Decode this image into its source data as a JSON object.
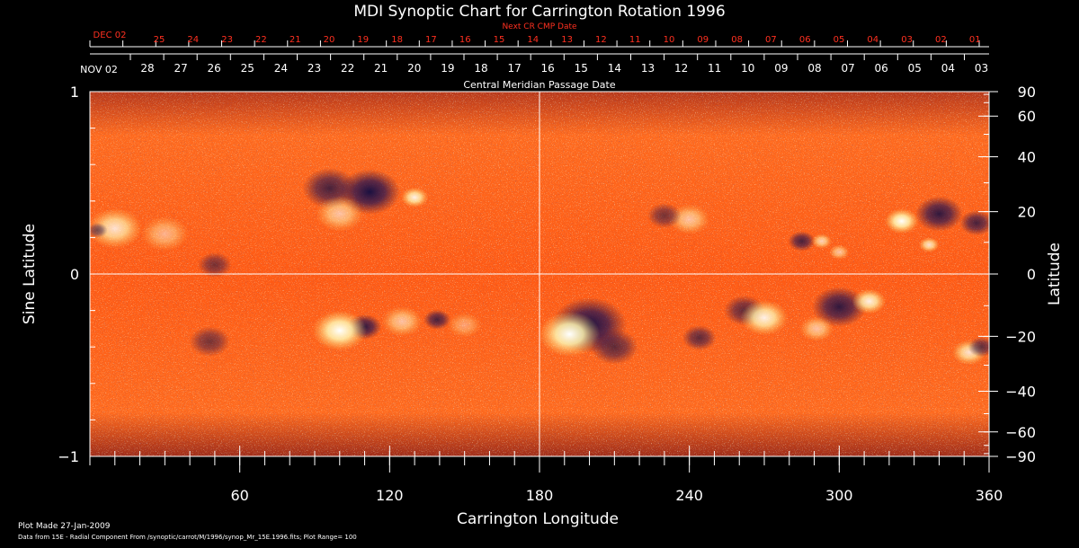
{
  "chart_data": {
    "type": "heatmap",
    "title": "MDI Synoptic Chart for Carrington Rotation 1996",
    "top_axis_label": "Next CR CMP Date",
    "top_axis_start_label": "DEC 02",
    "top_axis_ticks": [
      "25",
      "24",
      "23",
      "22",
      "21",
      "20",
      "19",
      "18",
      "17",
      "16",
      "15",
      "14",
      "13",
      "12",
      "11",
      "10",
      "09",
      "08",
      "07",
      "06",
      "05",
      "04",
      "03",
      "02",
      "01"
    ],
    "date_axis_label": "Central Meridian Passage Date",
    "date_axis_start_label": "NOV 02",
    "date_axis_ticks": [
      "28",
      "27",
      "26",
      "25",
      "24",
      "23",
      "22",
      "21",
      "20",
      "19",
      "18",
      "17",
      "16",
      "15",
      "14",
      "13",
      "12",
      "11",
      "10",
      "09",
      "08",
      "07",
      "06",
      "05",
      "04",
      "03"
    ],
    "xlabel": "Carrington Longitude",
    "xlim": [
      0,
      360
    ],
    "xticks": [
      60,
      120,
      180,
      240,
      300,
      360
    ],
    "ylabel": "Sine Latitude",
    "ylim": [
      -1,
      1
    ],
    "yticks": [
      {
        "value": 1,
        "label": "1"
      },
      {
        "value": 0,
        "label": "0"
      },
      {
        "value": -1,
        "label": "−1"
      }
    ],
    "right_ylabel": "Latitude",
    "right_yticks": [
      90,
      60,
      40,
      20,
      0,
      -20,
      -40,
      -60,
      -90
    ],
    "colors": {
      "background": "#ff5a14",
      "positive": "#ffffff",
      "negative": "#1a1040",
      "grid": "#ffffff"
    },
    "regions": [
      {
        "lon": 112,
        "sinlat": 0.45,
        "polarity": "negative",
        "strength": 1.0,
        "size": 18
      },
      {
        "lon": 96,
        "sinlat": 0.47,
        "polarity": "negative",
        "strength": 0.8,
        "size": 16
      },
      {
        "lon": 130,
        "sinlat": 0.42,
        "polarity": "positive",
        "strength": 0.9,
        "size": 8
      },
      {
        "lon": 100,
        "sinlat": 0.33,
        "polarity": "positive",
        "strength": 0.6,
        "size": 14
      },
      {
        "lon": 10,
        "sinlat": 0.25,
        "polarity": "positive",
        "strength": 0.8,
        "size": 16
      },
      {
        "lon": 30,
        "sinlat": 0.22,
        "polarity": "positive",
        "strength": 0.5,
        "size": 14
      },
      {
        "lon": 50,
        "sinlat": 0.05,
        "polarity": "negative",
        "strength": 0.6,
        "size": 10
      },
      {
        "lon": 110,
        "sinlat": -0.29,
        "polarity": "negative",
        "strength": 0.9,
        "size": 10
      },
      {
        "lon": 100,
        "sinlat": -0.31,
        "polarity": "positive",
        "strength": 1.0,
        "size": 16
      },
      {
        "lon": 125,
        "sinlat": -0.26,
        "polarity": "positive",
        "strength": 0.6,
        "size": 12
      },
      {
        "lon": 139,
        "sinlat": -0.25,
        "polarity": "negative",
        "strength": 0.8,
        "size": 8
      },
      {
        "lon": 150,
        "sinlat": -0.28,
        "polarity": "positive",
        "strength": 0.4,
        "size": 10
      },
      {
        "lon": 48,
        "sinlat": -0.37,
        "polarity": "negative",
        "strength": 0.6,
        "size": 12
      },
      {
        "lon": 200,
        "sinlat": -0.28,
        "polarity": "negative",
        "strength": 1.0,
        "size": 22
      },
      {
        "lon": 192,
        "sinlat": -0.33,
        "polarity": "positive",
        "strength": 1.0,
        "size": 18
      },
      {
        "lon": 210,
        "sinlat": -0.4,
        "polarity": "negative",
        "strength": 0.7,
        "size": 14
      },
      {
        "lon": 262,
        "sinlat": -0.2,
        "polarity": "negative",
        "strength": 0.7,
        "size": 12
      },
      {
        "lon": 270,
        "sinlat": -0.24,
        "polarity": "positive",
        "strength": 0.9,
        "size": 14
      },
      {
        "lon": 244,
        "sinlat": -0.35,
        "polarity": "negative",
        "strength": 0.7,
        "size": 10
      },
      {
        "lon": 300,
        "sinlat": -0.18,
        "polarity": "negative",
        "strength": 0.9,
        "size": 16
      },
      {
        "lon": 312,
        "sinlat": -0.15,
        "polarity": "positive",
        "strength": 0.9,
        "size": 10
      },
      {
        "lon": 291,
        "sinlat": -0.3,
        "polarity": "positive",
        "strength": 0.6,
        "size": 10
      },
      {
        "lon": 325,
        "sinlat": 0.29,
        "polarity": "positive",
        "strength": 1.0,
        "size": 10
      },
      {
        "lon": 340,
        "sinlat": 0.33,
        "polarity": "negative",
        "strength": 0.9,
        "size": 14
      },
      {
        "lon": 355,
        "sinlat": 0.28,
        "polarity": "negative",
        "strength": 0.8,
        "size": 10
      },
      {
        "lon": 336,
        "sinlat": 0.16,
        "polarity": "positive",
        "strength": 0.8,
        "size": 6
      },
      {
        "lon": 240,
        "sinlat": 0.3,
        "polarity": "positive",
        "strength": 0.6,
        "size": 12
      },
      {
        "lon": 230,
        "sinlat": 0.32,
        "polarity": "negative",
        "strength": 0.6,
        "size": 10
      },
      {
        "lon": 285,
        "sinlat": 0.18,
        "polarity": "negative",
        "strength": 0.8,
        "size": 8
      },
      {
        "lon": 293,
        "sinlat": 0.18,
        "polarity": "positive",
        "strength": 0.7,
        "size": 6
      },
      {
        "lon": 300,
        "sinlat": 0.12,
        "polarity": "positive",
        "strength": 0.6,
        "size": 6
      },
      {
        "lon": 352,
        "sinlat": -0.43,
        "polarity": "positive",
        "strength": 0.8,
        "size": 10
      },
      {
        "lon": 357,
        "sinlat": -0.4,
        "polarity": "negative",
        "strength": 0.7,
        "size": 8
      },
      {
        "lon": 3,
        "sinlat": 0.24,
        "polarity": "negative",
        "strength": 0.6,
        "size": 6
      }
    ]
  },
  "footer": {
    "plot_made": "Plot Made 27-Jan-2009",
    "data_source": "Data from 15E - Radial Component From /synoptic/carrot/M/1996/synop_Mr_15E.1996.fits; Plot Range= 100"
  }
}
